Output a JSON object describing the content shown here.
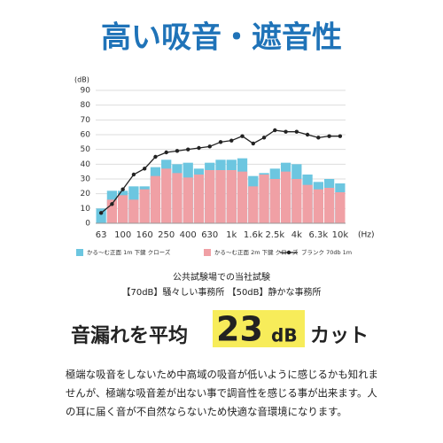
{
  "title": "高い吸音・遮音性",
  "chart_data": {
    "type": "bar-line",
    "y_label": "(dB)",
    "x_label": "(Hz)",
    "categories": [
      "63",
      null,
      "100",
      null,
      "160",
      null,
      "250",
      null,
      "400",
      null,
      "630",
      null,
      "1k",
      null,
      "1.6k",
      null,
      "2.5k",
      null,
      "4k",
      null,
      "6.3k",
      null,
      "10k"
    ],
    "series": [
      {
        "name": "かる〜む正面 1m 下鍵 クローズ",
        "color": "#6cc6e0",
        "kind": "bar",
        "values": [
          10,
          22,
          22,
          25,
          25,
          38,
          43,
          40,
          41,
          37,
          41,
          43,
          43,
          44,
          32,
          34,
          37,
          41,
          40,
          33,
          28,
          30,
          27
        ]
      },
      {
        "name": "かる〜む正面 2m 下鍵 クローズ",
        "color": "#f0a0a5",
        "kind": "bar",
        "values": [
          null,
          16,
          19,
          16,
          23,
          32,
          37,
          34,
          31,
          33,
          36,
          36,
          36,
          35,
          25,
          33,
          30,
          35,
          30,
          26,
          23,
          24,
          21
        ]
      },
      {
        "name": "ブランク 70db 1m",
        "color": "#222222",
        "kind": "line",
        "values": [
          7,
          13,
          23,
          33,
          37,
          45,
          48,
          49,
          50,
          51,
          52,
          55,
          56,
          59,
          54,
          58,
          63,
          62,
          62,
          60,
          58,
          59,
          59
        ]
      }
    ],
    "ylim": [
      0,
      90
    ],
    "yticks": [
      0,
      10,
      20,
      30,
      40,
      50,
      60,
      70,
      80,
      90
    ],
    "grid": true
  },
  "notes": [
    "公共試験場での当社試験",
    "【70dB】騒々しい事務所 【50dB】静かな事務所"
  ],
  "headline": {
    "before": "音漏れを平均",
    "number": "23",
    "unit": "dB",
    "after": "カット"
  },
  "body": [
    "極端な吸音をしないため中高域の吸音が低いように感じるかも知れま",
    "せんが、極端な吸音差が出ない事で調音性を感じる事が出来ます。人",
    "の耳に届く音が不自然ならないため快適な音環境になります。"
  ]
}
